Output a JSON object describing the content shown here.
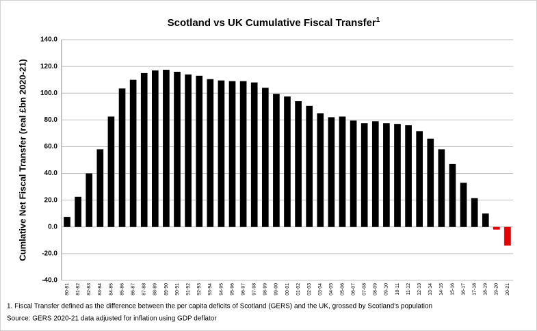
{
  "chart_data": {
    "type": "bar",
    "title": "Scotland vs UK Cumulative Fiscal Transfer",
    "title_superscript": "1",
    "y_label": "Cumlative Net Fiscal Transfer (real £bn 2020-21)",
    "categories": [
      "80-81",
      "81-82",
      "82-83",
      "83-84",
      "84-85",
      "85-86",
      "86-87",
      "87-88",
      "88-89",
      "89-90",
      "90-91",
      "91-92",
      "92-93",
      "93-94",
      "94-95",
      "95-96",
      "96-97",
      "97-98",
      "98-99",
      "99-00",
      "00-01",
      "01-02",
      "02-03",
      "03-04",
      "04-05",
      "05-06",
      "06-07",
      "07-08",
      "08-09",
      "09-10",
      "10-11",
      "11-12",
      "12-13",
      "13-14",
      "14-15",
      "15-16",
      "16-17",
      "17-18",
      "18-19",
      "19-20",
      "20-21"
    ],
    "values": [
      7.5,
      22.5,
      40,
      58,
      82.5,
      103.5,
      110,
      115,
      117,
      117.5,
      116,
      114,
      113,
      110.5,
      109.5,
      109,
      109,
      108,
      104,
      99.5,
      97.5,
      94,
      90.5,
      85,
      82,
      82.5,
      79.5,
      77.5,
      79,
      77.5,
      77,
      76,
      71.5,
      66,
      58,
      47,
      33,
      21.5,
      10,
      -2,
      -14
    ],
    "color": "#000000",
    "negative_color": "#e60000",
    "ylim": [
      -40,
      140
    ],
    "yticks": [
      {
        "value": -40,
        "label": "-40.0"
      },
      {
        "value": -20,
        "label": "-20.0"
      },
      {
        "value": 0,
        "label": "0.0"
      },
      {
        "value": 20,
        "label": "20.0"
      },
      {
        "value": 40,
        "label": "40.0"
      },
      {
        "value": 60,
        "label": "60.0"
      },
      {
        "value": 80,
        "label": "80.0"
      },
      {
        "value": 100,
        "label": "100.0"
      },
      {
        "value": 120,
        "label": "120.0"
      },
      {
        "value": 140,
        "label": "140.0"
      }
    ],
    "grid": true,
    "notes": [
      "1.  Fiscal Transfer defined as the difference between the per capita deficits of Scotland (GERS) and the UK,  grossed by Scotland's population",
      "Source:  GERS 2020-21 data adjusted for inflation using GDP deflator"
    ]
  }
}
